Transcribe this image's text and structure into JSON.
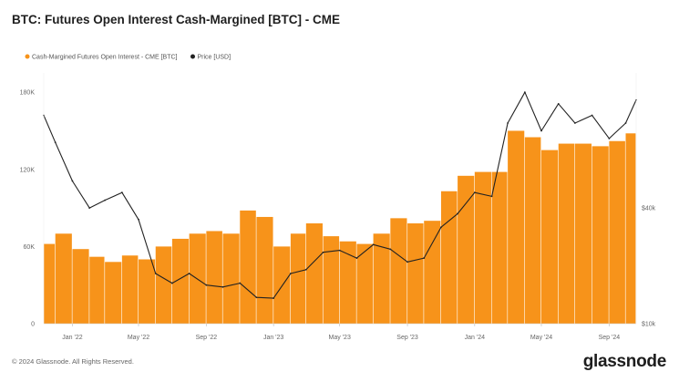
{
  "title": "BTC: Futures Open Interest Cash-Margined [BTC] - CME",
  "footer": {
    "copyright": "© 2024 Glassnode. All Rights Reserved.",
    "logo": "glassnode"
  },
  "chart_data": {
    "type": "bar+line",
    "legend_position": "top-left",
    "legend": [
      {
        "name": "Cash-Margined Futures Open Interest - CME [BTC]",
        "color": "#f7931a"
      },
      {
        "name": "Price [USD]",
        "color": "#222222"
      }
    ],
    "x_ticks": [
      "Jan '22",
      "May '22",
      "Sep '22",
      "Jan '23",
      "May '23",
      "Sep '23",
      "Jan '24",
      "May '24",
      "Sep '24"
    ],
    "x_tick_dates": [
      "2022-01-01",
      "2022-05-01",
      "2022-09-01",
      "2023-01-01",
      "2023-05-01",
      "2023-09-01",
      "2024-01-01",
      "2024-05-01",
      "2024-09-01"
    ],
    "x_range": [
      "2021-11-10",
      "2024-10-20"
    ],
    "left_axis": {
      "ticks": [
        "0",
        "60K",
        "120K",
        "180K"
      ],
      "tick_values": [
        0,
        60000,
        120000,
        180000
      ],
      "range": [
        0,
        195000
      ]
    },
    "right_axis": {
      "ticks": [
        "$10k",
        "$40k"
      ],
      "tick_values": [
        10000,
        40000
      ],
      "range": [
        10000,
        75000
      ]
    },
    "grid": false,
    "open_interest_btc": [
      {
        "date": "2021-11-10",
        "value": 62000
      },
      {
        "date": "2021-12-01",
        "value": 70000
      },
      {
        "date": "2022-01-01",
        "value": 58000
      },
      {
        "date": "2022-02-01",
        "value": 52000
      },
      {
        "date": "2022-03-01",
        "value": 48000
      },
      {
        "date": "2022-04-01",
        "value": 53000
      },
      {
        "date": "2022-05-01",
        "value": 50000
      },
      {
        "date": "2022-06-01",
        "value": 60000
      },
      {
        "date": "2022-07-01",
        "value": 66000
      },
      {
        "date": "2022-08-01",
        "value": 70000
      },
      {
        "date": "2022-09-01",
        "value": 72000
      },
      {
        "date": "2022-10-01",
        "value": 70000
      },
      {
        "date": "2022-11-01",
        "value": 88000
      },
      {
        "date": "2022-12-01",
        "value": 83000
      },
      {
        "date": "2023-01-01",
        "value": 60000
      },
      {
        "date": "2023-02-01",
        "value": 70000
      },
      {
        "date": "2023-03-01",
        "value": 78000
      },
      {
        "date": "2023-04-01",
        "value": 68000
      },
      {
        "date": "2023-05-01",
        "value": 64000
      },
      {
        "date": "2023-06-01",
        "value": 62000
      },
      {
        "date": "2023-07-01",
        "value": 70000
      },
      {
        "date": "2023-08-01",
        "value": 82000
      },
      {
        "date": "2023-09-01",
        "value": 78000
      },
      {
        "date": "2023-10-01",
        "value": 80000
      },
      {
        "date": "2023-11-01",
        "value": 103000
      },
      {
        "date": "2023-12-01",
        "value": 115000
      },
      {
        "date": "2024-01-01",
        "value": 118000
      },
      {
        "date": "2024-02-01",
        "value": 118000
      },
      {
        "date": "2024-03-01",
        "value": 150000
      },
      {
        "date": "2024-04-01",
        "value": 145000
      },
      {
        "date": "2024-05-01",
        "value": 135000
      },
      {
        "date": "2024-06-01",
        "value": 140000
      },
      {
        "date": "2024-07-01",
        "value": 140000
      },
      {
        "date": "2024-08-01",
        "value": 138000
      },
      {
        "date": "2024-09-01",
        "value": 142000
      },
      {
        "date": "2024-10-01",
        "value": 148000
      },
      {
        "date": "2024-10-20",
        "value": 146000
      }
    ],
    "price_usd": [
      {
        "date": "2021-11-10",
        "value": 64000
      },
      {
        "date": "2021-12-01",
        "value": 57000
      },
      {
        "date": "2022-01-01",
        "value": 47000
      },
      {
        "date": "2022-02-01",
        "value": 40000
      },
      {
        "date": "2022-03-01",
        "value": 42000
      },
      {
        "date": "2022-04-01",
        "value": 44000
      },
      {
        "date": "2022-05-01",
        "value": 37000
      },
      {
        "date": "2022-06-01",
        "value": 23000
      },
      {
        "date": "2022-07-01",
        "value": 20500
      },
      {
        "date": "2022-08-01",
        "value": 23000
      },
      {
        "date": "2022-09-01",
        "value": 20000
      },
      {
        "date": "2022-10-01",
        "value": 19500
      },
      {
        "date": "2022-11-01",
        "value": 20500
      },
      {
        "date": "2022-12-01",
        "value": 16800
      },
      {
        "date": "2023-01-01",
        "value": 16600
      },
      {
        "date": "2023-02-01",
        "value": 23000
      },
      {
        "date": "2023-03-01",
        "value": 24000
      },
      {
        "date": "2023-04-01",
        "value": 28500
      },
      {
        "date": "2023-05-01",
        "value": 29000
      },
      {
        "date": "2023-06-01",
        "value": 27000
      },
      {
        "date": "2023-07-01",
        "value": 30500
      },
      {
        "date": "2023-08-01",
        "value": 29300
      },
      {
        "date": "2023-09-01",
        "value": 26000
      },
      {
        "date": "2023-10-01",
        "value": 27000
      },
      {
        "date": "2023-11-01",
        "value": 35000
      },
      {
        "date": "2023-12-01",
        "value": 38500
      },
      {
        "date": "2024-01-01",
        "value": 44000
      },
      {
        "date": "2024-02-01",
        "value": 43000
      },
      {
        "date": "2024-03-01",
        "value": 62000
      },
      {
        "date": "2024-04-01",
        "value": 70000
      },
      {
        "date": "2024-05-01",
        "value": 60000
      },
      {
        "date": "2024-06-01",
        "value": 67000
      },
      {
        "date": "2024-07-01",
        "value": 62000
      },
      {
        "date": "2024-08-01",
        "value": 64000
      },
      {
        "date": "2024-09-01",
        "value": 58000
      },
      {
        "date": "2024-10-01",
        "value": 62000
      },
      {
        "date": "2024-10-20",
        "value": 68000
      }
    ]
  }
}
